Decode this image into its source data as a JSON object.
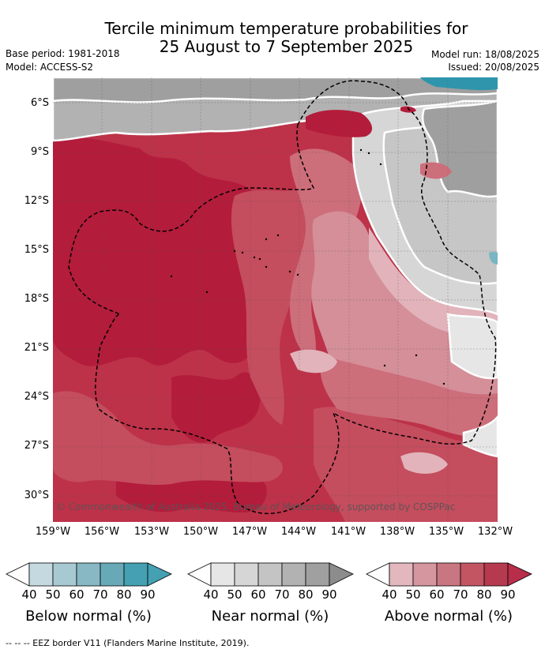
{
  "title_line1": "Tercile minimum temperature probabilities for",
  "title_line2": "25 August to 7 September 2025",
  "meta": {
    "base_period": "Base period: 1981-2018",
    "model": "Model: ACCESS-S2",
    "model_run": "Model run: 18/08/2025",
    "issued": "Issued: 20/08/2025"
  },
  "copyright": "© Commonwealth of Australia 2025, Bureau of Meteorology, supported by COSPPac",
  "lat_labels": [
    "6°S",
    "9°S",
    "12°S",
    "15°S",
    "18°S",
    "21°S",
    "24°S",
    "27°S",
    "30°S"
  ],
  "lon_labels": [
    "159°W",
    "156°W",
    "153°W",
    "150°W",
    "147°W",
    "144°W",
    "141°W",
    "138°W",
    "135°W",
    "132°W"
  ],
  "legends": [
    {
      "title": "Below normal (%)",
      "ticks": [
        "40",
        "50",
        "60",
        "70",
        "80",
        "90"
      ],
      "colors": [
        "#c5dae0",
        "#a7c9d2",
        "#87b8c4",
        "#68a9b8",
        "#44a0b2"
      ]
    },
    {
      "title": "Near normal (%)",
      "ticks": [
        "40",
        "50",
        "60",
        "70",
        "80",
        "90"
      ],
      "colors": [
        "#e6e6e6",
        "#d6d6d6",
        "#c4c4c4",
        "#b2b2b2",
        "#a0a0a0"
      ]
    },
    {
      "title": "Above normal (%)",
      "ticks": [
        "40",
        "50",
        "60",
        "70",
        "80",
        "90"
      ],
      "colors": [
        "#e2b7be",
        "#d5969f",
        "#c87681",
        "#c35563",
        "#b63a4f"
      ]
    }
  ],
  "legend_arrow_colors": {
    "below": "#44a0b2",
    "near": "#8c8c8c",
    "above": "#b72d4a"
  },
  "footnote": "--  --  -- EEZ border V11 (Flanders Marine Institute, 2019).",
  "map_colors": {
    "above_90": "#b31c3b",
    "above_80": "#bd3249",
    "above_70": "#c44d5e",
    "above_60": "#cd6e7b",
    "above_50": "#d48f99",
    "above_40": "#e2b3bb",
    "near_40": "#e6e6e6",
    "near_50": "#d6d6d6",
    "near_60": "#c6c6c6",
    "near_70": "#b2b2b2",
    "near_80": "#9f9f9f",
    "near_90": "#888888",
    "below_80": "#2f95ad",
    "below_60": "#7ab5c4"
  }
}
